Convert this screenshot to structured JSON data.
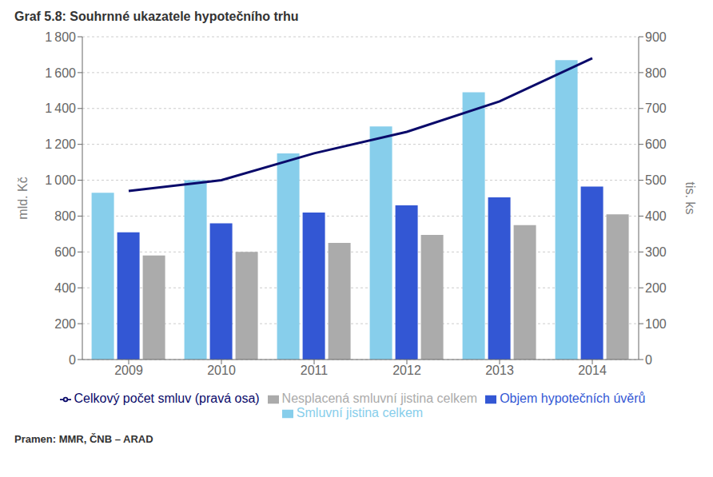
{
  "chart_data": {
    "type": "bar",
    "title": "Graf 5.8: Souhrnné ukazatele hypotečního trhu",
    "categories": [
      "2009",
      "2010",
      "2011",
      "2012",
      "2013",
      "2014"
    ],
    "series": [
      {
        "name": "Smluvní jistina celkem",
        "color": "#87CEEB",
        "values": [
          930,
          1000,
          1150,
          1300,
          1490,
          1670
        ]
      },
      {
        "name": "Objem hypotečních úvěrů",
        "color": "#3357D4",
        "values": [
          710,
          760,
          820,
          860,
          905,
          965
        ]
      },
      {
        "name": "Nesplacená smluvní jistina celkem",
        "color": "#ABABAB",
        "values": [
          580,
          600,
          650,
          695,
          750,
          810
        ]
      },
      {
        "name": "Celkový počet smluv (pravá osa)",
        "color": "#0A0A6A",
        "type": "line",
        "axis": "y2",
        "values": [
          470,
          500,
          575,
          635,
          720,
          840
        ]
      }
    ],
    "ylabel": "mld. Kč",
    "y2label": "tis. ks",
    "ylim": [
      0,
      1800
    ],
    "yticks": [
      0,
      200,
      400,
      600,
      800,
      {
        "value": 1000,
        "label": "1 000"
      },
      {
        "value": 1200,
        "label": "1 200"
      },
      {
        "value": 1400,
        "label": "1 400"
      },
      {
        "value": 1600,
        "label": "1 600"
      },
      {
        "value": 1800,
        "label": "1 800"
      }
    ],
    "y2lim": [
      0,
      900
    ],
    "y2ticks": [
      0,
      100,
      200,
      300,
      400,
      500,
      600,
      700,
      800,
      900
    ],
    "grid": true,
    "legend": "bottom",
    "source": "Pramen: MMR, ČNB – ARAD"
  }
}
